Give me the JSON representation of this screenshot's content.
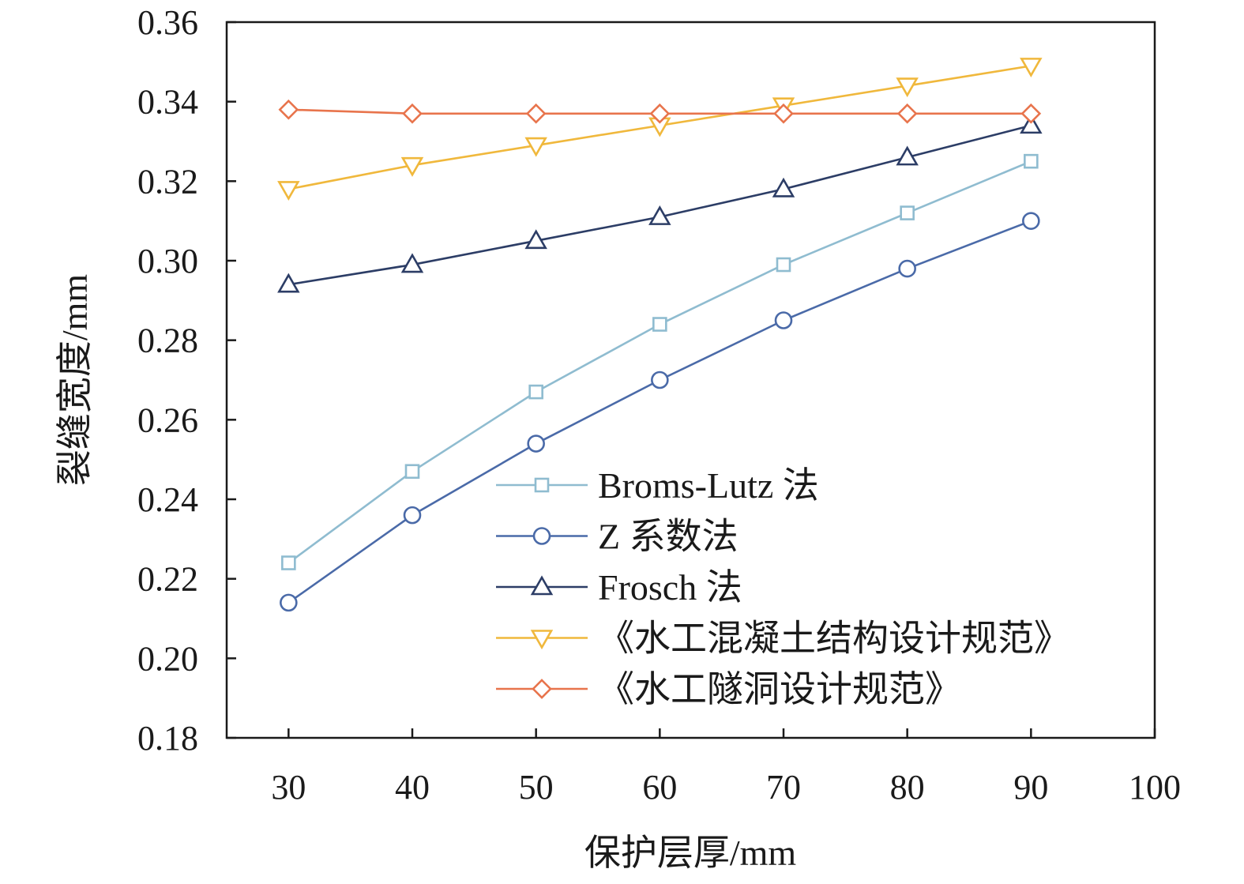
{
  "chart_data": {
    "type": "line",
    "xlabel": "保护层厚/mm",
    "ylabel": "裂缝宽度/mm",
    "xlim": [
      25,
      100
    ],
    "ylim": [
      0.18,
      0.36
    ],
    "xticks": [
      "30",
      "40",
      "50",
      "60",
      "70",
      "80",
      "90",
      "100"
    ],
    "yticks": [
      "0.18",
      "0.20",
      "0.22",
      "0.24",
      "0.26",
      "0.28",
      "0.30",
      "0.32",
      "0.34",
      "0.36"
    ],
    "grid": false,
    "legend_position": "bottom-right",
    "x": [
      30,
      40,
      50,
      60,
      70,
      80,
      90
    ],
    "series": [
      {
        "name": "Broms-Lutz 法",
        "color": "#8fbcd0",
        "marker": "square",
        "values": [
          0.224,
          0.247,
          0.267,
          0.284,
          0.299,
          0.312,
          0.325
        ]
      },
      {
        "name": "Z 系数法",
        "color": "#4a6aa8",
        "marker": "circle",
        "values": [
          0.214,
          0.236,
          0.254,
          0.27,
          0.285,
          0.298,
          0.31
        ]
      },
      {
        "name": "Frosch 法",
        "color": "#2c3d66",
        "marker": "triangle-up",
        "values": [
          0.294,
          0.299,
          0.305,
          0.311,
          0.318,
          0.326,
          0.334
        ]
      },
      {
        "name": "《水工混凝土结构设计规范》",
        "color": "#f0b83c",
        "marker": "triangle-down",
        "values": [
          0.318,
          0.324,
          0.329,
          0.334,
          0.339,
          0.344,
          0.349
        ]
      },
      {
        "name": "《水工隧洞设计规范》",
        "color": "#e8744c",
        "marker": "diamond",
        "values": [
          0.338,
          0.337,
          0.337,
          0.337,
          0.337,
          0.337,
          0.337
        ]
      }
    ]
  }
}
